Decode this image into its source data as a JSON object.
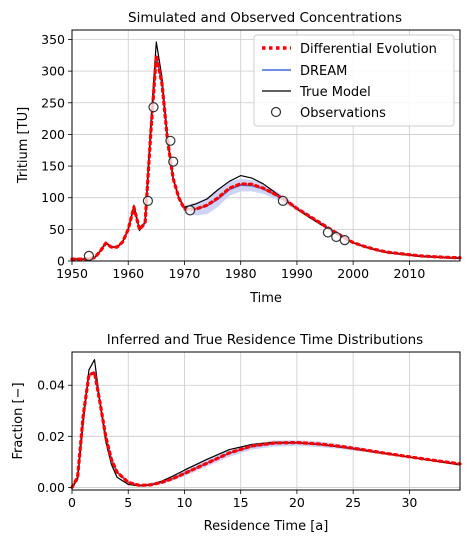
{
  "colors": {
    "de": "#ff0000",
    "dream": "#4169e1",
    "band": "#c7cdf6",
    "true": "#000000",
    "obs_edge": "#333333",
    "obs_face": "#ffffff",
    "grid": "#cccccc"
  },
  "chart_data": [
    {
      "type": "line",
      "title": "Simulated and Observed Concentrations",
      "xlabel": "Time",
      "ylabel": "Tritium [TU]",
      "xlim": [
        1950,
        2019
      ],
      "ylim": [
        0,
        365
      ],
      "xticks": [
        1950,
        1960,
        1970,
        1980,
        1990,
        2000,
        2010
      ],
      "yticks": [
        0,
        50,
        100,
        150,
        200,
        250,
        300,
        350
      ],
      "grid": true,
      "legend_position": "top-right",
      "series": [
        {
          "name": "Differential Evolution",
          "style": "dotted",
          "x": [
            1950,
            1952,
            1954,
            1955,
            1956,
            1957,
            1958,
            1959,
            1960,
            1961,
            1962,
            1963,
            1964,
            1965,
            1966,
            1967,
            1968,
            1969,
            1970,
            1972,
            1974,
            1976,
            1978,
            1980,
            1982,
            1984,
            1986,
            1988,
            1990,
            1992,
            1994,
            1996,
            1998,
            2000,
            2002,
            2004,
            2006,
            2008,
            2010,
            2012,
            2014,
            2016,
            2019
          ],
          "y": [
            3,
            3,
            5,
            15,
            28,
            22,
            22,
            30,
            50,
            85,
            50,
            60,
            200,
            325,
            280,
            190,
            130,
            100,
            82,
            82,
            88,
            100,
            115,
            122,
            121,
            115,
            106,
            96,
            83,
            72,
            61,
            50,
            39,
            29,
            23,
            18,
            14,
            12,
            10,
            8,
            7,
            6,
            5
          ]
        },
        {
          "name": "DREAM",
          "style": "solid",
          "x": [
            1950,
            1952,
            1954,
            1955,
            1956,
            1957,
            1958,
            1959,
            1960,
            1961,
            1962,
            1963,
            1964,
            1965,
            1966,
            1967,
            1968,
            1969,
            1970,
            1972,
            1974,
            1976,
            1978,
            1980,
            1982,
            1984,
            1986,
            1988,
            1990,
            1992,
            1994,
            1996,
            1998,
            2000,
            2002,
            2004,
            2006,
            2008,
            2010,
            2012,
            2014,
            2016,
            2019
          ],
          "y": [
            3,
            3,
            5,
            15,
            28,
            22,
            22,
            30,
            50,
            85,
            50,
            60,
            200,
            323,
            280,
            190,
            130,
            100,
            82,
            82,
            87,
            98,
            113,
            120,
            119,
            114,
            105,
            95,
            83,
            72,
            61,
            50,
            39,
            29,
            23,
            18,
            14,
            12,
            10,
            8,
            7,
            6,
            5
          ]
        },
        {
          "name": "True Model",
          "style": "solid",
          "x": [
            1950,
            1952,
            1954,
            1955,
            1956,
            1957,
            1958,
            1959,
            1960,
            1961,
            1962,
            1963,
            1964,
            1965,
            1966,
            1967,
            1968,
            1969,
            1970,
            1972,
            1974,
            1976,
            1978,
            1980,
            1982,
            1984,
            1986,
            1988,
            1990,
            1992,
            1994,
            1996,
            1998,
            2000,
            2002,
            2004,
            2006,
            2008,
            2010,
            2012,
            2014,
            2016,
            2019
          ],
          "y": [
            3,
            3,
            5,
            15,
            30,
            22,
            22,
            30,
            50,
            88,
            48,
            62,
            215,
            346,
            290,
            195,
            130,
            100,
            85,
            90,
            98,
            113,
            126,
            135,
            131,
            122,
            109,
            96,
            82,
            70,
            59,
            48,
            38,
            29,
            22,
            17,
            13,
            11,
            9,
            7,
            6,
            5,
            4
          ]
        },
        {
          "name": "Observations",
          "style": "markers",
          "x": [
            1953,
            1963.5,
            1964.5,
            1967.5,
            1968,
            1971,
            1987.5,
            1995.5,
            1997,
            1998.5
          ],
          "y": [
            8,
            95,
            243,
            190,
            157,
            80,
            95,
            45,
            38,
            33
          ]
        }
      ],
      "band": {
        "x": [
          1970,
          1972,
          1974,
          1976,
          1978,
          1980,
          1982,
          1984,
          1986,
          1988,
          1990,
          1992
        ],
        "lower": [
          75,
          72,
          74,
          86,
          103,
          110,
          110,
          106,
          99,
          90,
          80,
          70
        ],
        "upper": [
          88,
          92,
          100,
          112,
          125,
          130,
          128,
          122,
          112,
          101,
          87,
          75
        ]
      }
    },
    {
      "type": "line",
      "title": "Inferred and True Residence Time Distributions",
      "xlabel": "Residence Time [a]",
      "ylabel": "Fraction [−]",
      "xlim": [
        0,
        34.5
      ],
      "ylim": [
        -0.001,
        0.053
      ],
      "xticks": [
        0,
        5,
        10,
        15,
        20,
        25,
        30
      ],
      "yticks": [
        0.0,
        0.02,
        0.04
      ],
      "ytick_labels": [
        "0.00",
        "0.02",
        "0.04"
      ],
      "grid": true,
      "series": [
        {
          "name": "Differential Evolution",
          "style": "dotted",
          "x": [
            0,
            0.5,
            1,
            1.5,
            2,
            2.5,
            3,
            3.5,
            4,
            5,
            6,
            7,
            8,
            9,
            10,
            12,
            14,
            16,
            18,
            20,
            22,
            24,
            26,
            28,
            30,
            32,
            34.5
          ],
          "y": [
            0,
            0.004,
            0.028,
            0.044,
            0.045,
            0.033,
            0.02,
            0.011,
            0.006,
            0.002,
            0.0008,
            0.001,
            0.002,
            0.0035,
            0.0055,
            0.0095,
            0.0135,
            0.0162,
            0.0174,
            0.0176,
            0.017,
            0.016,
            0.0147,
            0.0133,
            0.012,
            0.0107,
            0.0092
          ]
        },
        {
          "name": "DREAM",
          "style": "solid",
          "x": [
            0,
            0.5,
            1,
            1.5,
            2,
            2.5,
            3,
            3.5,
            4,
            5,
            6,
            7,
            8,
            9,
            10,
            12,
            14,
            16,
            18,
            20,
            22,
            24,
            26,
            28,
            30,
            32,
            34.5
          ],
          "y": [
            0,
            0.004,
            0.028,
            0.044,
            0.045,
            0.033,
            0.02,
            0.011,
            0.006,
            0.002,
            0.0008,
            0.001,
            0.002,
            0.0035,
            0.0055,
            0.0095,
            0.0134,
            0.016,
            0.0172,
            0.0174,
            0.0169,
            0.0159,
            0.0146,
            0.0132,
            0.0119,
            0.0106,
            0.0091
          ]
        },
        {
          "name": "True Model",
          "style": "solid",
          "x": [
            0,
            0.5,
            1,
            1.5,
            2,
            2.5,
            3,
            3.5,
            4,
            5,
            6,
            7,
            8,
            9,
            10,
            12,
            14,
            16,
            18,
            20,
            22,
            24,
            26,
            28,
            30,
            32,
            34.5
          ],
          "y": [
            0,
            0.003,
            0.025,
            0.046,
            0.05,
            0.033,
            0.018,
            0.009,
            0.004,
            0.0012,
            0.0006,
            0.001,
            0.0025,
            0.0045,
            0.0068,
            0.011,
            0.0148,
            0.0168,
            0.0177,
            0.0175,
            0.0168,
            0.0157,
            0.0144,
            0.0131,
            0.0118,
            0.0105,
            0.0088
          ]
        }
      ],
      "band": {
        "x": [
          6,
          8,
          10,
          12,
          14,
          16,
          18,
          20,
          22,
          24,
          26,
          28
        ],
        "lower": [
          0.0004,
          0.0013,
          0.0043,
          0.0082,
          0.012,
          0.0148,
          0.016,
          0.0163,
          0.0158,
          0.015,
          0.0139,
          0.0128
        ],
        "upper": [
          0.0012,
          0.0027,
          0.0067,
          0.0108,
          0.0148,
          0.0172,
          0.0184,
          0.0185,
          0.018,
          0.0168,
          0.0154,
          0.0138
        ]
      }
    }
  ]
}
